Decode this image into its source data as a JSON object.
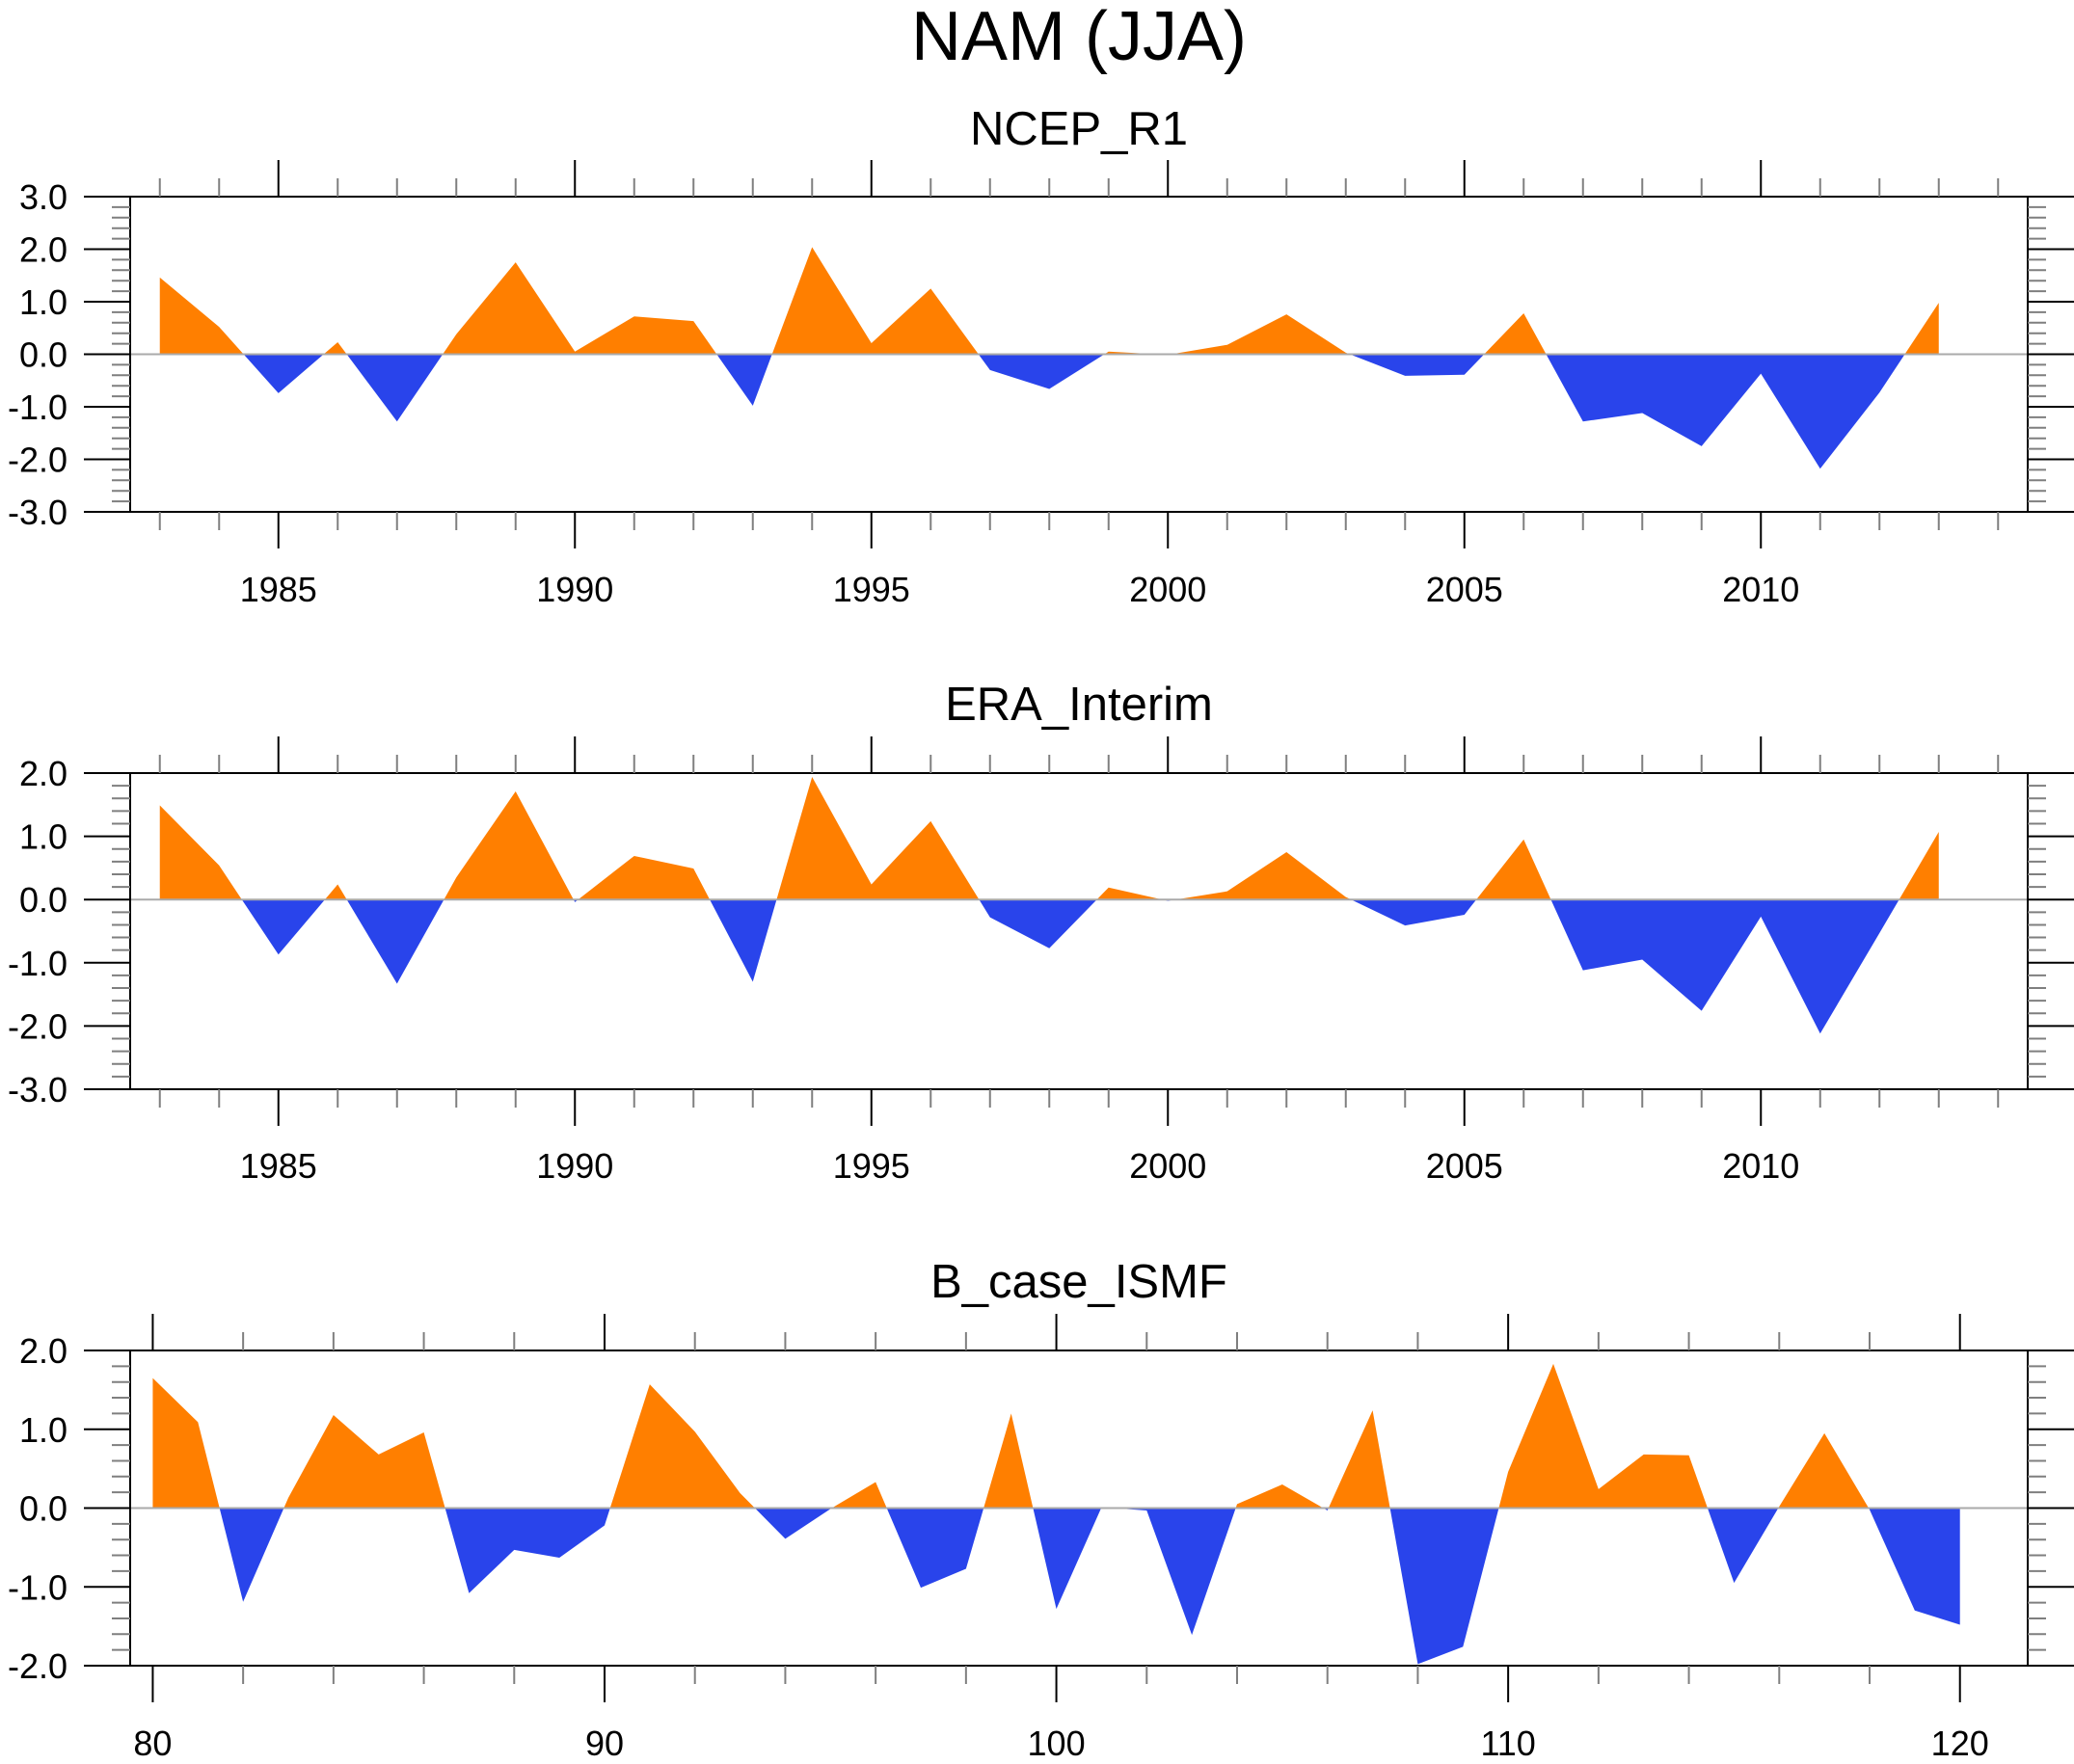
{
  "figure": {
    "title": "NAM (JJA)"
  },
  "colors": {
    "positive": "#ff7f00",
    "negative": "#2944eb",
    "zero_line": "#aaaaaa",
    "axis": "#000000",
    "minor_tick": "#7f7f7f"
  },
  "chart_data": [
    {
      "type": "area",
      "title": "NCEP_R1",
      "xlabel": "",
      "ylabel": "",
      "fill_above_zero": "orange",
      "fill_below_zero": "blue",
      "reference_line": 0.0,
      "xlim": [
        1982.5,
        2014.5
      ],
      "ylim": [
        -3.0,
        3.0
      ],
      "x_major_ticks": [
        1985,
        1990,
        1995,
        2000,
        2005,
        2010
      ],
      "x_tick_labels": [
        "1985",
        "1990",
        "1995",
        "2000",
        "2005",
        "2010"
      ],
      "x_minor_step": 1,
      "y_major_ticks": [
        3.0,
        2.0,
        1.0,
        0.0,
        -1.0,
        -2.0,
        -3.0
      ],
      "y_tick_labels": [
        "3.0",
        "2.0",
        "1.0",
        "0.0",
        "-1.0",
        "-2.0",
        "-3.0"
      ],
      "y_minor_step": 0.2,
      "grid": false,
      "x": [
        1983,
        1984,
        1985,
        1986,
        1987,
        1988,
        1989,
        1990,
        1991,
        1992,
        1993,
        1994,
        1995,
        1996,
        1997,
        1998,
        1999,
        2000,
        2001,
        2002,
        2003,
        2004,
        2005,
        2006,
        2007,
        2008,
        2009,
        2010,
        2011,
        2012,
        2013
      ],
      "values": [
        1.46,
        0.52,
        -0.74,
        0.23,
        -1.28,
        0.38,
        1.75,
        0.05,
        0.72,
        0.63,
        -0.98,
        2.04,
        0.21,
        1.25,
        -0.3,
        -0.66,
        0.05,
        -0.01,
        0.18,
        0.76,
        0.03,
        -0.41,
        -0.39,
        0.78,
        -1.28,
        -1.12,
        -1.75,
        -0.37,
        -2.18,
        -0.73,
        0.98
      ]
    },
    {
      "type": "area",
      "title": "ERA_Interim",
      "xlabel": "",
      "ylabel": "",
      "fill_above_zero": "orange",
      "fill_below_zero": "blue",
      "reference_line": 0.0,
      "xlim": [
        1982.5,
        2014.5
      ],
      "ylim": [
        -3.0,
        2.0
      ],
      "x_major_ticks": [
        1985,
        1990,
        1995,
        2000,
        2005,
        2010
      ],
      "x_tick_labels": [
        "1985",
        "1990",
        "1995",
        "2000",
        "2005",
        "2010"
      ],
      "x_minor_step": 1,
      "y_major_ticks": [
        2.0,
        1.0,
        0.0,
        -1.0,
        -2.0,
        -3.0
      ],
      "y_tick_labels": [
        "2.0",
        "1.0",
        "0.0",
        "-1.0",
        "-2.0",
        "-3.0"
      ],
      "y_minor_step": 0.2,
      "grid": false,
      "x": [
        1983,
        1984,
        1985,
        1986,
        1987,
        1988,
        1989,
        1990,
        1991,
        1992,
        1993,
        1994,
        1995,
        1996,
        1997,
        1998,
        1999,
        2000,
        2001,
        2002,
        2003,
        2004,
        2005,
        2006,
        2007,
        2008,
        2009,
        2010,
        2011,
        2012,
        2013
      ],
      "values": [
        1.49,
        0.54,
        -0.87,
        0.24,
        -1.33,
        0.35,
        1.71,
        -0.04,
        0.69,
        0.49,
        -1.3,
        1.94,
        0.24,
        1.24,
        -0.28,
        -0.77,
        0.19,
        -0.02,
        0.13,
        0.75,
        0.04,
        -0.41,
        -0.24,
        0.95,
        -1.12,
        -0.95,
        -1.76,
        -0.27,
        -2.12,
        -0.53,
        1.07
      ]
    },
    {
      "type": "area",
      "title": "B_case_ISMF",
      "xlabel": "",
      "ylabel": "",
      "fill_above_zero": "orange",
      "fill_below_zero": "blue",
      "reference_line": 0.0,
      "xlim": [
        79.5,
        121.5
      ],
      "ylim": [
        -2.0,
        2.0
      ],
      "x_major_ticks": [
        80,
        90,
        100,
        110,
        120
      ],
      "x_tick_labels": [
        "80",
        "90",
        "100",
        "110",
        "120"
      ],
      "x_minor_step": 2,
      "y_major_ticks": [
        2.0,
        1.0,
        0.0,
        -1.0,
        -2.0
      ],
      "y_tick_labels": [
        "2.0",
        "1.0",
        "0.0",
        "-1.0",
        "-2.0"
      ],
      "y_minor_step": 0.2,
      "grid": false,
      "x": [
        80,
        81,
        82,
        83,
        84,
        85,
        86,
        87,
        88,
        89,
        90,
        91,
        92,
        93,
        94,
        95,
        96,
        97,
        98,
        99,
        100,
        101,
        102,
        103,
        104,
        105,
        106,
        107,
        108,
        109,
        110,
        111,
        112,
        113,
        114,
        115,
        116,
        117,
        118,
        119,
        120
      ],
      "values": [
        1.65,
        1.09,
        -1.19,
        0.13,
        1.18,
        0.68,
        0.96,
        -1.08,
        -0.53,
        -0.63,
        -0.22,
        1.57,
        0.97,
        0.19,
        -0.39,
        -0.01,
        0.33,
        -1.01,
        -0.77,
        1.2,
        -1.28,
        0.01,
        -0.03,
        -1.61,
        0.05,
        0.3,
        -0.03,
        1.24,
        -1.98,
        -1.76,
        0.46,
        1.83,
        0.24,
        0.68,
        0.67,
        -0.95,
        0.02,
        0.95,
        -0.02,
        -1.3,
        -1.48
      ]
    }
  ]
}
